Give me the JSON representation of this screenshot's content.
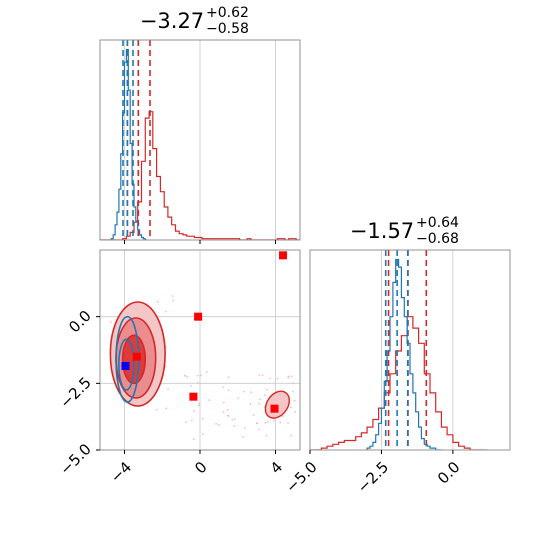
{
  "chart_data": [
    {
      "type": "histogram",
      "panel": "top-left marginal",
      "title": {
        "main": "−3.27",
        "sup": "+0.62",
        "sub": "−0.58"
      },
      "xlim": [
        -5.3,
        5.3
      ],
      "grid": true,
      "series": [
        {
          "color": "#d62728",
          "bin_start": -5.3,
          "bin_width": 0.2,
          "counts": [
            0,
            0,
            0,
            0,
            0,
            0,
            1,
            3,
            6,
            14,
            30,
            62,
            96,
            101,
            72,
            50,
            38,
            26,
            18,
            12,
            7,
            5,
            4,
            3,
            3,
            2,
            2,
            1,
            1,
            1,
            1,
            1,
            1,
            1,
            1,
            1,
            1,
            0,
            0,
            1,
            0,
            0,
            0,
            0,
            0,
            0,
            0,
            1,
            1,
            0,
            1,
            1,
            0
          ],
          "quantile_lines": [
            -3.85,
            -3.27,
            -2.65
          ]
        },
        {
          "color": "#1f77b4",
          "bin_start": -4.7,
          "bin_width": 0.1,
          "counts": [
            1,
            4,
            12,
            22,
            40,
            68,
            100,
            140,
            150,
            118,
            76,
            44,
            26,
            15,
            8,
            4,
            2,
            1,
            0
          ],
          "quantile_lines": [
            -4.08,
            -3.85,
            -3.55
          ]
        }
      ]
    },
    {
      "type": "histogram",
      "panel": "bottom-right marginal",
      "title": {
        "main": "−1.57",
        "sup": "+0.64",
        "sub": "−0.68"
      },
      "xlim": [
        -5.0,
        2.0
      ],
      "xticks": [
        "−5.0",
        "−2.5",
        "0.0"
      ],
      "grid": true,
      "series": [
        {
          "color": "#d62728",
          "bin_start": -5.0,
          "bin_width": 0.2,
          "counts": [
            0,
            0,
            1,
            2,
            3,
            4,
            5,
            5,
            7,
            9,
            12,
            16,
            22,
            30,
            40,
            52,
            60,
            70,
            64,
            56,
            40,
            30,
            20,
            12,
            8,
            4,
            2,
            1,
            0,
            0,
            0
          ],
          "quantile_lines": [
            -2.25,
            -1.57,
            -0.93
          ]
        },
        {
          "color": "#1f77b4",
          "bin_start": -3.0,
          "bin_width": 0.1,
          "counts": [
            1,
            2,
            4,
            8,
            14,
            22,
            36,
            52,
            70,
            88,
            100,
            96,
            80,
            70,
            56,
            40,
            30,
            20,
            12,
            6,
            3,
            2,
            1,
            1,
            0,
            0
          ],
          "quantile_lines": [
            -2.35,
            -1.95,
            -1.58
          ]
        }
      ]
    },
    {
      "type": "scatter",
      "panel": "bottom-left joint",
      "xlim": [
        -5.3,
        5.3
      ],
      "ylim": [
        -5.0,
        2.5
      ],
      "xticks": [
        "−4",
        "0",
        "4"
      ],
      "yticks": [
        "−5.0",
        "−2.5",
        "0.0"
      ],
      "grid": true,
      "red_contours": [
        {
          "cx": -3.3,
          "cy": -1.4,
          "rx": 1.45,
          "ry": 1.95
        },
        {
          "cx": -3.4,
          "cy": -1.55,
          "rx": 1.05,
          "ry": 1.5
        },
        {
          "cx": -3.5,
          "cy": -1.6,
          "rx": 0.6,
          "ry": 0.9
        }
      ],
      "red_secondary_contours": [
        {
          "cx": 4.1,
          "cy": -3.3,
          "rx": 0.55,
          "ry": 0.55
        }
      ],
      "blue_contours": [
        {
          "cx": -3.85,
          "cy": -1.6,
          "rx": 0.6,
          "ry": 1.6
        },
        {
          "cx": -3.9,
          "cy": -1.8,
          "rx": 0.4,
          "ry": 0.95
        }
      ],
      "red_point_clusters": [
        {
          "x": -0.1,
          "y": 0.0
        },
        {
          "x": -3.35,
          "y": -1.5
        },
        {
          "x": -0.35,
          "y": -3.0
        },
        {
          "x": 3.95,
          "y": -3.45
        },
        {
          "x": 4.4,
          "y": 2.3
        }
      ],
      "blue_point_clusters": [
        {
          "x": -3.95,
          "y": -1.85
        }
      ]
    }
  ]
}
